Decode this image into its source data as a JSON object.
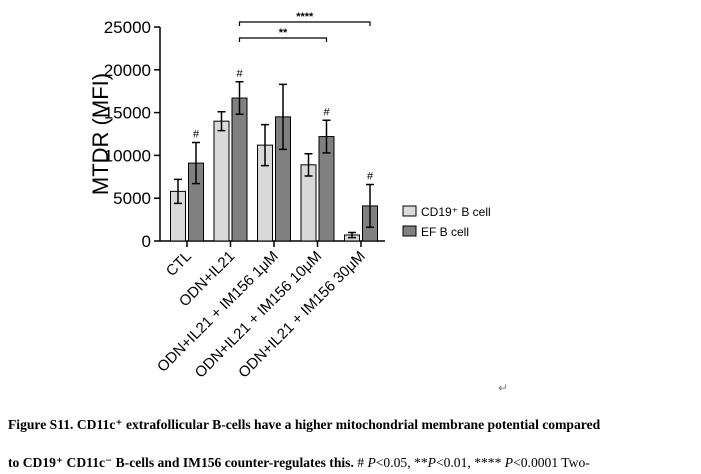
{
  "chart_data": {
    "type": "bar",
    "y_label": "MTDR (MFI)",
    "categories": [
      "CTL",
      "ODN+IL21",
      "ODN+IL21 + IM156 1μM",
      "ODN+IL21 + IM156 10μM",
      "ODN+IL21 + IM156 30μM"
    ],
    "series": [
      {
        "name": "CD19⁺ B cell",
        "color": "#d9d9d9",
        "values": [
          5800,
          14000,
          11200,
          8900,
          700
        ],
        "errors": [
          1400,
          1100,
          2400,
          1300,
          300
        ]
      },
      {
        "name": "EF B cell",
        "color": "#808080",
        "values": [
          9100,
          16700,
          14500,
          12200,
          4100
        ],
        "errors": [
          2400,
          1900,
          3800,
          1900,
          2500
        ],
        "value_annotations": [
          "#",
          "#",
          null,
          "#",
          "#"
        ]
      }
    ],
    "comparisons": [
      {
        "from": 1,
        "to": 4,
        "label": "****"
      },
      {
        "from": 1,
        "to": 3,
        "label": "**"
      }
    ],
    "ylim": [
      0,
      25000
    ],
    "yticks": [
      0,
      5000,
      10000,
      15000,
      20000,
      25000
    ]
  },
  "return_mark": "↵",
  "caption": {
    "line1": "Figure S11. CD11c⁺ extrafollicular B-cells have a higher mitochondrial membrane potential compared",
    "line2": [
      {
        "text": "to CD19⁺ CD11c⁻ B-cells and IM156 counter-regulates this.",
        "style": "bold"
      },
      {
        "text": " # ",
        "style": "normal"
      },
      {
        "text": "P",
        "style": "italic"
      },
      {
        "text": "<0.05, **",
        "style": "normal"
      },
      {
        "text": "P",
        "style": "italic"
      },
      {
        "text": "<0.01, **** ",
        "style": "normal"
      },
      {
        "text": "P",
        "style": "italic"
      },
      {
        "text": "<0.0001 Two-",
        "style": "normal"
      }
    ]
  }
}
